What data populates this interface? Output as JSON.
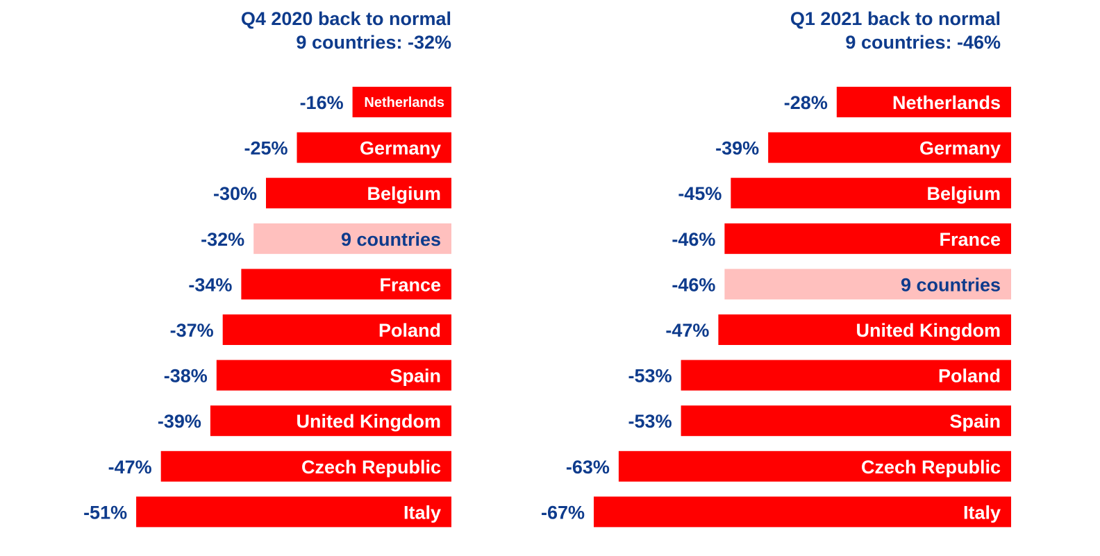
{
  "colors": {
    "bar": "#FF0000",
    "highlight_bar": "#FFC0BE",
    "text_dark": "#0E3B8C",
    "text_light": "#FFFFFF"
  },
  "chart_data": [
    {
      "type": "bar",
      "orientation": "horizontal",
      "title_line1": "Q4 2020 back to normal",
      "title_line2": "9 countries: -32%",
      "categories": [
        "Netherlands",
        "Germany",
        "Belgium",
        "9 countries",
        "France",
        "Poland",
        "Spain",
        "United Kingdom",
        "Czech Republic",
        "Italy"
      ],
      "values": [
        -16,
        -25,
        -30,
        -32,
        -34,
        -37,
        -38,
        -39,
        -47,
        -51
      ],
      "value_labels": [
        "-16%",
        "-25%",
        "-30%",
        "-32%",
        "-34%",
        "-37%",
        "-38%",
        "-39%",
        "-47%",
        "-51%"
      ],
      "highlight": "9 countries"
    },
    {
      "type": "bar",
      "orientation": "horizontal",
      "title_line1": "Q1 2021 back to normal",
      "title_line2": "9 countries: -46%",
      "categories": [
        "Netherlands",
        "Germany",
        "Belgium",
        "France",
        "9 countries",
        "United Kingdom",
        "Poland",
        "Spain",
        "Czech Republic",
        "Italy"
      ],
      "values": [
        -28,
        -39,
        -45,
        -46,
        -46,
        -47,
        -53,
        -53,
        -63,
        -67
      ],
      "value_labels": [
        "-28%",
        "-39%",
        "-45%",
        "-46%",
        "-46%",
        "-47%",
        "-53%",
        "-53%",
        "-63%",
        "-67%"
      ],
      "highlight": "9 countries"
    }
  ]
}
